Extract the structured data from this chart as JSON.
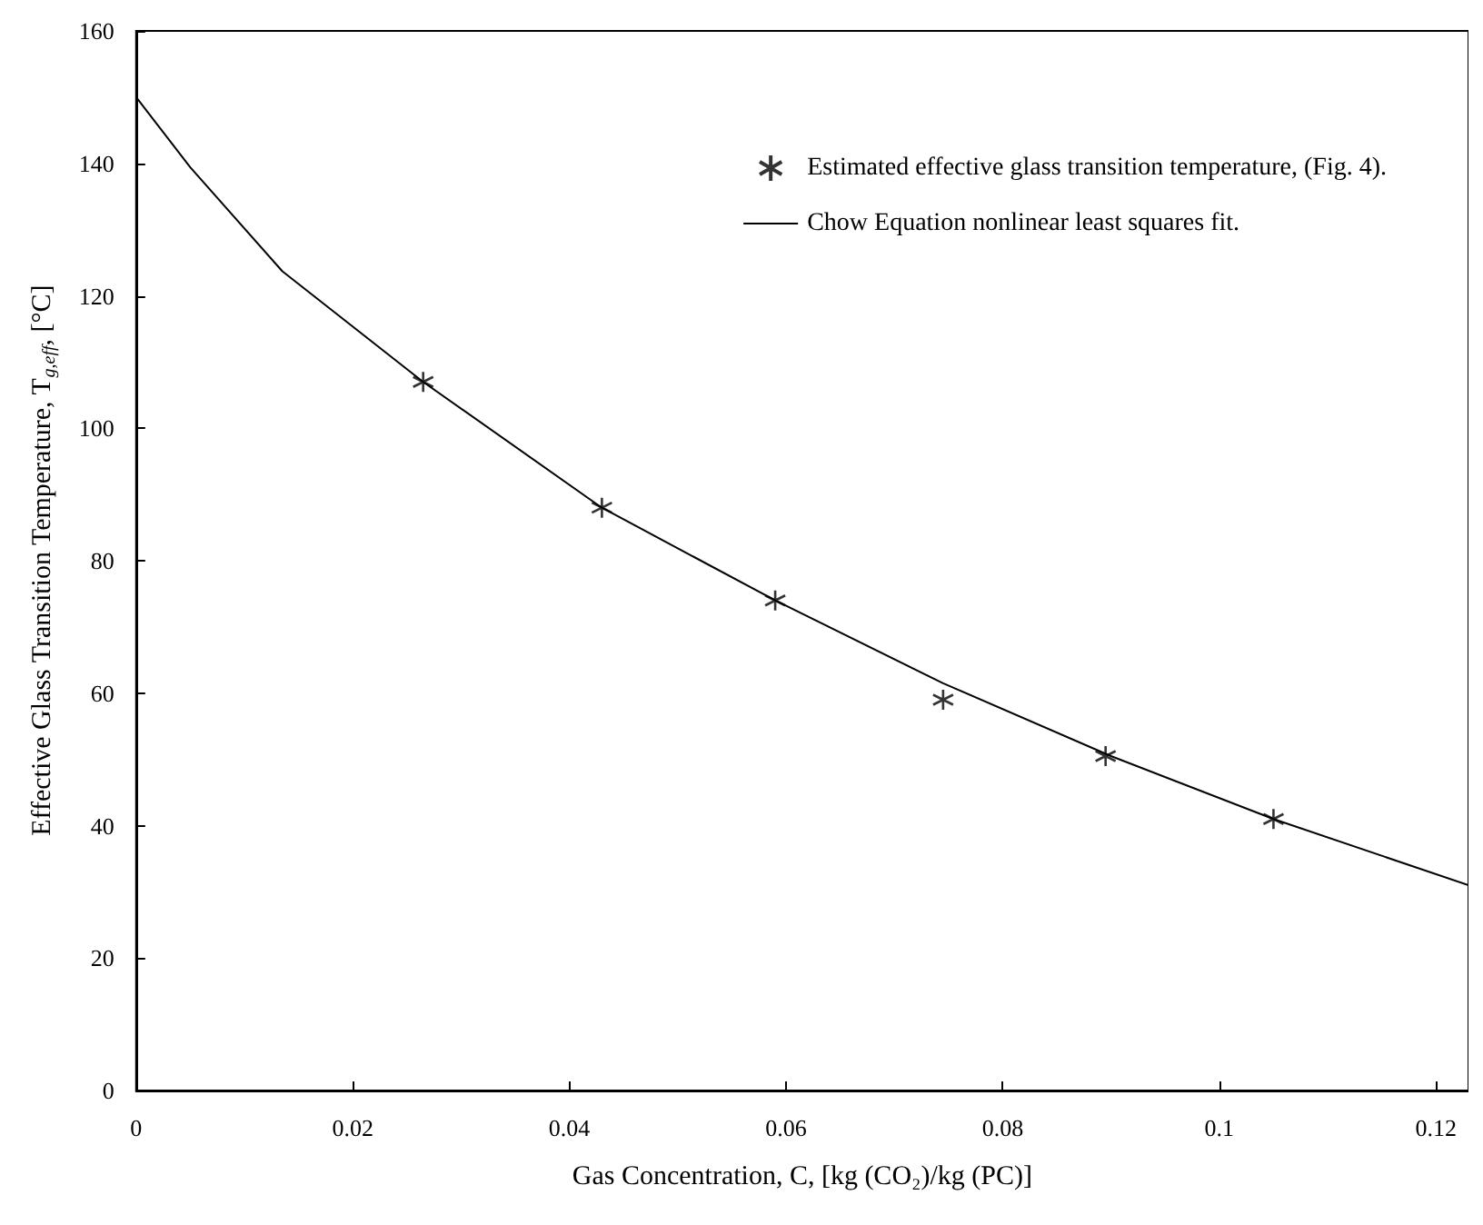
{
  "chart_data": {
    "type": "scatter",
    "xlabel": "Gas Concentration, C, [kg (CO₂)/kg (PC)]",
    "ylabel": "Effective Glass Transition Temperature, T$_{g,eff}$, [°C]",
    "xlim": [
      0,
      0.123
    ],
    "xticks": [
      0,
      0.02,
      0.04,
      0.06,
      0.08,
      0.1,
      0.12
    ],
    "ylim": [
      0,
      160
    ],
    "yticks": [
      0,
      20,
      40,
      60,
      80,
      100,
      120,
      140,
      160
    ],
    "grid": false,
    "legend": "top right",
    "series": [
      {
        "name": "Estimated effective glass transition temperature, (Fig. 4).",
        "marker": "cross",
        "color": "#000000",
        "x": [
          0.0265,
          0.043,
          0.059,
          0.0745,
          0.0895,
          0.105
        ],
        "values": [
          107,
          88,
          74,
          59,
          50.5,
          41
        ]
      },
      {
        "name": "Chow Equation nonlinear least squares fit.",
        "type": "line",
        "marker": "none",
        "line_style": "solid",
        "color": "#000000",
        "x": [
          0,
          0.005,
          0.0135,
          0.0265,
          0.043,
          0.059,
          0.0745,
          0.09,
          0.105,
          0.123
        ],
        "values": [
          150,
          139.4,
          123.7,
          107,
          88,
          74,
          61.5,
          50.5,
          41,
          31
        ]
      }
    ]
  }
}
